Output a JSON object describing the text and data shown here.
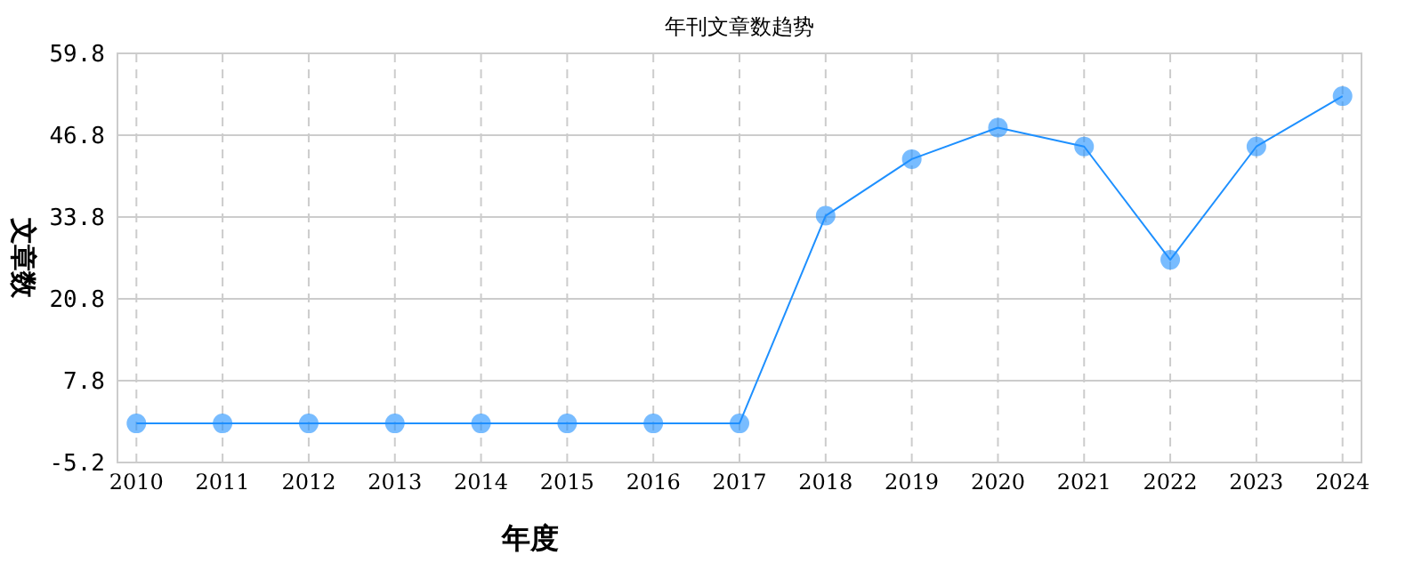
{
  "chart_data": {
    "type": "line",
    "title": "年刊文章数趋势",
    "xlabel": "年度",
    "ylabel": "文章数",
    "categories": [
      "2010",
      "2011",
      "2012",
      "2013",
      "2014",
      "2015",
      "2016",
      "2017",
      "2018",
      "2019",
      "2020",
      "2021",
      "2022",
      "2023",
      "2024"
    ],
    "series": [
      {
        "color": "#1e90ff",
        "values": [
          1,
          1,
          1,
          1,
          1,
          1,
          1,
          1,
          34,
          43,
          48,
          45,
          27,
          45,
          53
        ]
      }
    ],
    "ylim": [
      -5.2,
      59.8
    ],
    "yticks": [
      -5.2,
      7.8,
      20.8,
      33.8,
      46.8,
      59.8
    ],
    "grid": true,
    "marker": "circle",
    "line_style": "solid"
  }
}
